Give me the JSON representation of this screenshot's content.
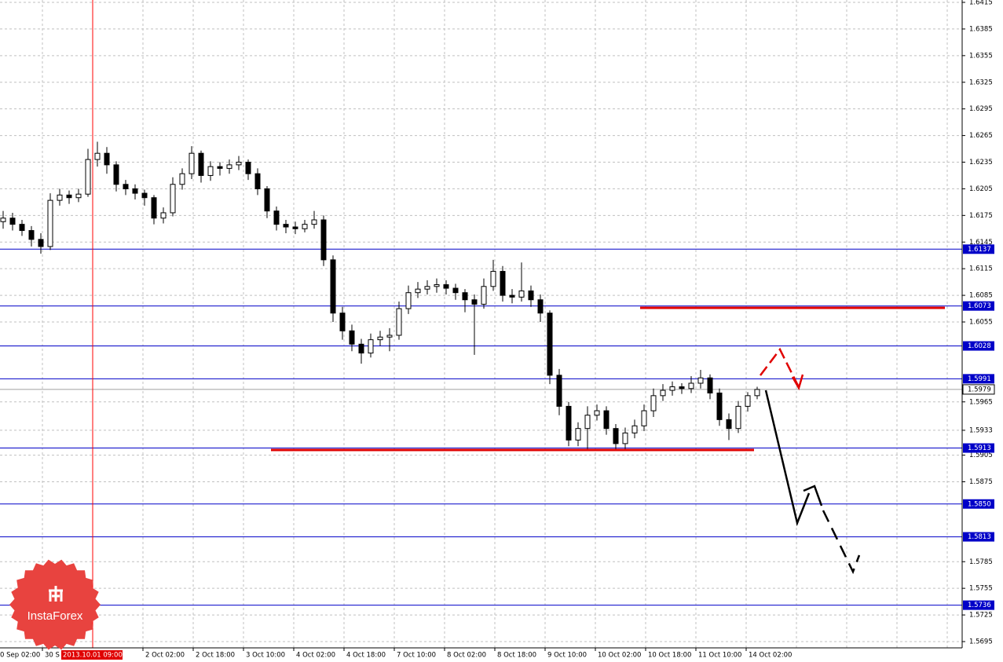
{
  "chart_data": {
    "type": "candlestick",
    "ylim": [
      1.5695,
      1.6415
    ],
    "yticks": [
      1.6415,
      1.6385,
      1.6355,
      1.6325,
      1.6295,
      1.6265,
      1.6235,
      1.6205,
      1.6175,
      1.6145,
      1.6115,
      1.6085,
      1.6055,
      1.5965,
      1.5933,
      1.5905,
      1.5875,
      1.5785,
      1.5755,
      1.5725,
      1.5695
    ],
    "grid": true,
    "x_labels": [
      "0 Sep 02:00",
      "30 S",
      "2013.10.01 09:00",
      "2 Oct 02:00",
      "2 Oct 18:00",
      "3 Oct 10:00",
      "4 Oct 02:00",
      "4 Oct 18:00",
      "7 Oct 10:00",
      "8 Oct 02:00",
      "8 Oct 18:00",
      "9 Oct 10:00",
      "10 Oct 02:00",
      "10 Oct 18:00",
      "11 Oct 10:00",
      "14 Oct 02:00"
    ],
    "levels": [
      1.6137,
      1.6073,
      1.6028,
      1.5991,
      1.5913,
      {
        "value": 1.585,
        "label": "1.5850"
      },
      1.5813,
      1.5736
    ],
    "level_color": "#0000c8",
    "current_price": 1.5979,
    "candles": [
      [
        1.6168,
        1.618,
        1.616,
        1.6172
      ],
      [
        1.6172,
        1.6178,
        1.6158,
        1.6165
      ],
      [
        1.6165,
        1.617,
        1.6152,
        1.6158
      ],
      [
        1.6158,
        1.6163,
        1.614,
        1.6148
      ],
      [
        1.6148,
        1.6155,
        1.6132,
        1.614
      ],
      [
        1.614,
        1.62,
        1.6136,
        1.6192
      ],
      [
        1.6192,
        1.6205,
        1.6186,
        1.6198
      ],
      [
        1.6198,
        1.6203,
        1.6188,
        1.6195
      ],
      [
        1.6195,
        1.6205,
        1.619,
        1.6199
      ],
      [
        1.6199,
        1.625,
        1.6196,
        1.6238
      ],
      [
        1.6238,
        1.6258,
        1.623,
        1.6245
      ],
      [
        1.6245,
        1.6252,
        1.6222,
        1.6232
      ],
      [
        1.6232,
        1.6236,
        1.6202,
        1.621
      ],
      [
        1.621,
        1.6215,
        1.6198,
        1.6205
      ],
      [
        1.6205,
        1.621,
        1.6193,
        1.62
      ],
      [
        1.62,
        1.6204,
        1.6186,
        1.6195
      ],
      [
        1.6195,
        1.6198,
        1.6165,
        1.6172
      ],
      [
        1.6172,
        1.6184,
        1.6166,
        1.6178
      ],
      [
        1.6178,
        1.6218,
        1.6174,
        1.621
      ],
      [
        1.621,
        1.6228,
        1.6204,
        1.6222
      ],
      [
        1.6222,
        1.6253,
        1.6216,
        1.6245
      ],
      [
        1.6245,
        1.6248,
        1.6212,
        1.622
      ],
      [
        1.622,
        1.6236,
        1.6214,
        1.623
      ],
      [
        1.623,
        1.6235,
        1.622,
        1.6228
      ],
      [
        1.6228,
        1.6238,
        1.6222,
        1.6232
      ],
      [
        1.6232,
        1.6242,
        1.6226,
        1.6235
      ],
      [
        1.6235,
        1.6238,
        1.6215,
        1.6222
      ],
      [
        1.6222,
        1.6228,
        1.6198,
        1.6205
      ],
      [
        1.6205,
        1.6208,
        1.6172,
        1.618
      ],
      [
        1.618,
        1.6185,
        1.6158,
        1.6165
      ],
      [
        1.6165,
        1.617,
        1.6155,
        1.6162
      ],
      [
        1.6162,
        1.6168,
        1.6154,
        1.616
      ],
      [
        1.616,
        1.617,
        1.6156,
        1.6165
      ],
      [
        1.6165,
        1.618,
        1.616,
        1.617
      ],
      [
        1.617,
        1.6175,
        1.6118,
        1.6125
      ],
      [
        1.6125,
        1.613,
        1.6055,
        1.6065
      ],
      [
        1.6065,
        1.6072,
        1.6035,
        1.6045
      ],
      [
        1.6045,
        1.6052,
        1.6022,
        1.603
      ],
      [
        1.603,
        1.6036,
        1.6008,
        1.602
      ],
      [
        1.602,
        1.6042,
        1.6015,
        1.6035
      ],
      [
        1.6035,
        1.6045,
        1.6028,
        1.6038
      ],
      [
        1.6038,
        1.6048,
        1.6022,
        1.604
      ],
      [
        1.604,
        1.6078,
        1.6035,
        1.607
      ],
      [
        1.607,
        1.6096,
        1.6064,
        1.6088
      ],
      [
        1.6088,
        1.61,
        1.6082,
        1.6092
      ],
      [
        1.6092,
        1.6102,
        1.6086,
        1.6095
      ],
      [
        1.6095,
        1.6104,
        1.6088,
        1.6097
      ],
      [
        1.6097,
        1.6102,
        1.6086,
        1.6093
      ],
      [
        1.6093,
        1.6098,
        1.608,
        1.6088
      ],
      [
        1.6088,
        1.6092,
        1.6066,
        1.608
      ],
      [
        1.608,
        1.6086,
        1.6018,
        1.6075
      ],
      [
        1.6075,
        1.6104,
        1.607,
        1.6095
      ],
      [
        1.6095,
        1.6125,
        1.609,
        1.6112
      ],
      [
        1.6112,
        1.6118,
        1.6078,
        1.6085
      ],
      [
        1.6085,
        1.6092,
        1.6076,
        1.6083
      ],
      [
        1.6083,
        1.6122,
        1.6078,
        1.609
      ],
      [
        1.609,
        1.6096,
        1.6072,
        1.608
      ],
      [
        1.608,
        1.6086,
        1.6055,
        1.6065
      ],
      [
        1.6065,
        1.6068,
        1.5985,
        1.5995
      ],
      [
        1.5995,
        1.6002,
        1.595,
        1.596
      ],
      [
        1.596,
        1.5965,
        1.5915,
        1.5922
      ],
      [
        1.5922,
        1.5942,
        1.5915,
        1.5935
      ],
      [
        1.5935,
        1.596,
        1.5912,
        1.595
      ],
      [
        1.595,
        1.5962,
        1.5944,
        1.5955
      ],
      [
        1.5955,
        1.596,
        1.5928,
        1.5935
      ],
      [
        1.5935,
        1.594,
        1.591,
        1.5918
      ],
      [
        1.5918,
        1.5936,
        1.5912,
        1.593
      ],
      [
        1.593,
        1.5945,
        1.5924,
        1.5938
      ],
      [
        1.5938,
        1.5962,
        1.5932,
        1.5955
      ],
      [
        1.5955,
        1.598,
        1.5948,
        1.5972
      ],
      [
        1.5972,
        1.5985,
        1.5966,
        1.5978
      ],
      [
        1.5978,
        1.5988,
        1.5972,
        1.5982
      ],
      [
        1.5982,
        1.5986,
        1.5974,
        1.598
      ],
      [
        1.598,
        1.5994,
        1.5975,
        1.5986
      ],
      [
        1.5986,
        1.6001,
        1.598,
        1.5992
      ],
      [
        1.5992,
        1.5996,
        1.5968,
        1.5975
      ],
      [
        1.5975,
        1.598,
        1.5938,
        1.5945
      ],
      [
        1.5945,
        1.5952,
        1.5922,
        1.5935
      ],
      [
        1.5935,
        1.5966,
        1.593,
        1.596
      ],
      [
        1.596,
        1.5976,
        1.5954,
        1.5972
      ],
      [
        1.5972,
        1.5982,
        1.5968,
        1.5979
      ]
    ]
  },
  "logo": {
    "text": "InstaForex"
  }
}
